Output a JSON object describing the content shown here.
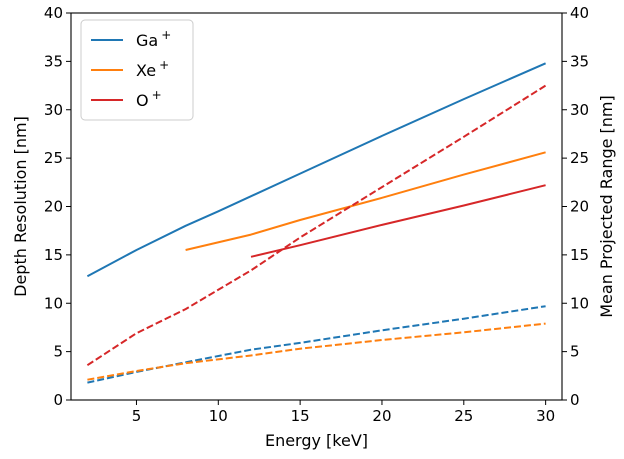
{
  "chart_data": {
    "type": "line",
    "title": "",
    "xlabel": "Energy [keV]",
    "ylabel_left": "Depth Resolution [nm]",
    "ylabel_right": "Mean Projected Range [nm]",
    "xlim": [
      1,
      31
    ],
    "ylim_left": [
      0,
      40
    ],
    "ylim_right": [
      0,
      40
    ],
    "x_ticks": [
      5,
      10,
      15,
      20,
      25,
      30
    ],
    "y_ticks": [
      0,
      5,
      10,
      15,
      20,
      25,
      30,
      35,
      40
    ],
    "grid": false,
    "legend": {
      "placement": "top-left"
    },
    "series": [
      {
        "name": "Ga",
        "superscript": "+",
        "color": "#1f77b4",
        "axis": "left",
        "style": "solid",
        "x": [
          2,
          5,
          8,
          10,
          15,
          20,
          25,
          30
        ],
        "y": [
          12.8,
          15.5,
          18.0,
          19.5,
          23.4,
          27.3,
          31.1,
          34.8
        ]
      },
      {
        "name": "Xe",
        "superscript": "+",
        "color": "#ff7f0e",
        "axis": "left",
        "style": "solid",
        "x": [
          8,
          12,
          15,
          20,
          25,
          30
        ],
        "y": [
          15.5,
          17.1,
          18.6,
          20.9,
          23.3,
          25.6
        ]
      },
      {
        "name": "O",
        "superscript": "+",
        "color": "#d62728",
        "axis": "left",
        "style": "solid",
        "x": [
          12,
          15,
          20,
          25,
          30
        ],
        "y": [
          14.8,
          16.0,
          18.1,
          20.1,
          22.2
        ]
      },
      {
        "color": "#1f77b4",
        "axis": "right",
        "style": "dashed",
        "x": [
          2,
          5,
          8,
          12,
          15,
          20,
          25,
          30
        ],
        "y": [
          1.8,
          2.9,
          3.9,
          5.2,
          5.9,
          7.2,
          8.4,
          9.7
        ]
      },
      {
        "color": "#ff7f0e",
        "axis": "right",
        "style": "dashed",
        "x": [
          2,
          5,
          8,
          12,
          15,
          20,
          25,
          30
        ],
        "y": [
          2.1,
          3.0,
          3.8,
          4.6,
          5.3,
          6.2,
          7.0,
          7.9
        ]
      },
      {
        "color": "#d62728",
        "axis": "right",
        "style": "dashed",
        "x": [
          2,
          5,
          8,
          12,
          15,
          20,
          25,
          30
        ],
        "y": [
          3.6,
          6.9,
          9.4,
          13.4,
          16.8,
          22.0,
          27.2,
          32.5
        ]
      }
    ]
  }
}
